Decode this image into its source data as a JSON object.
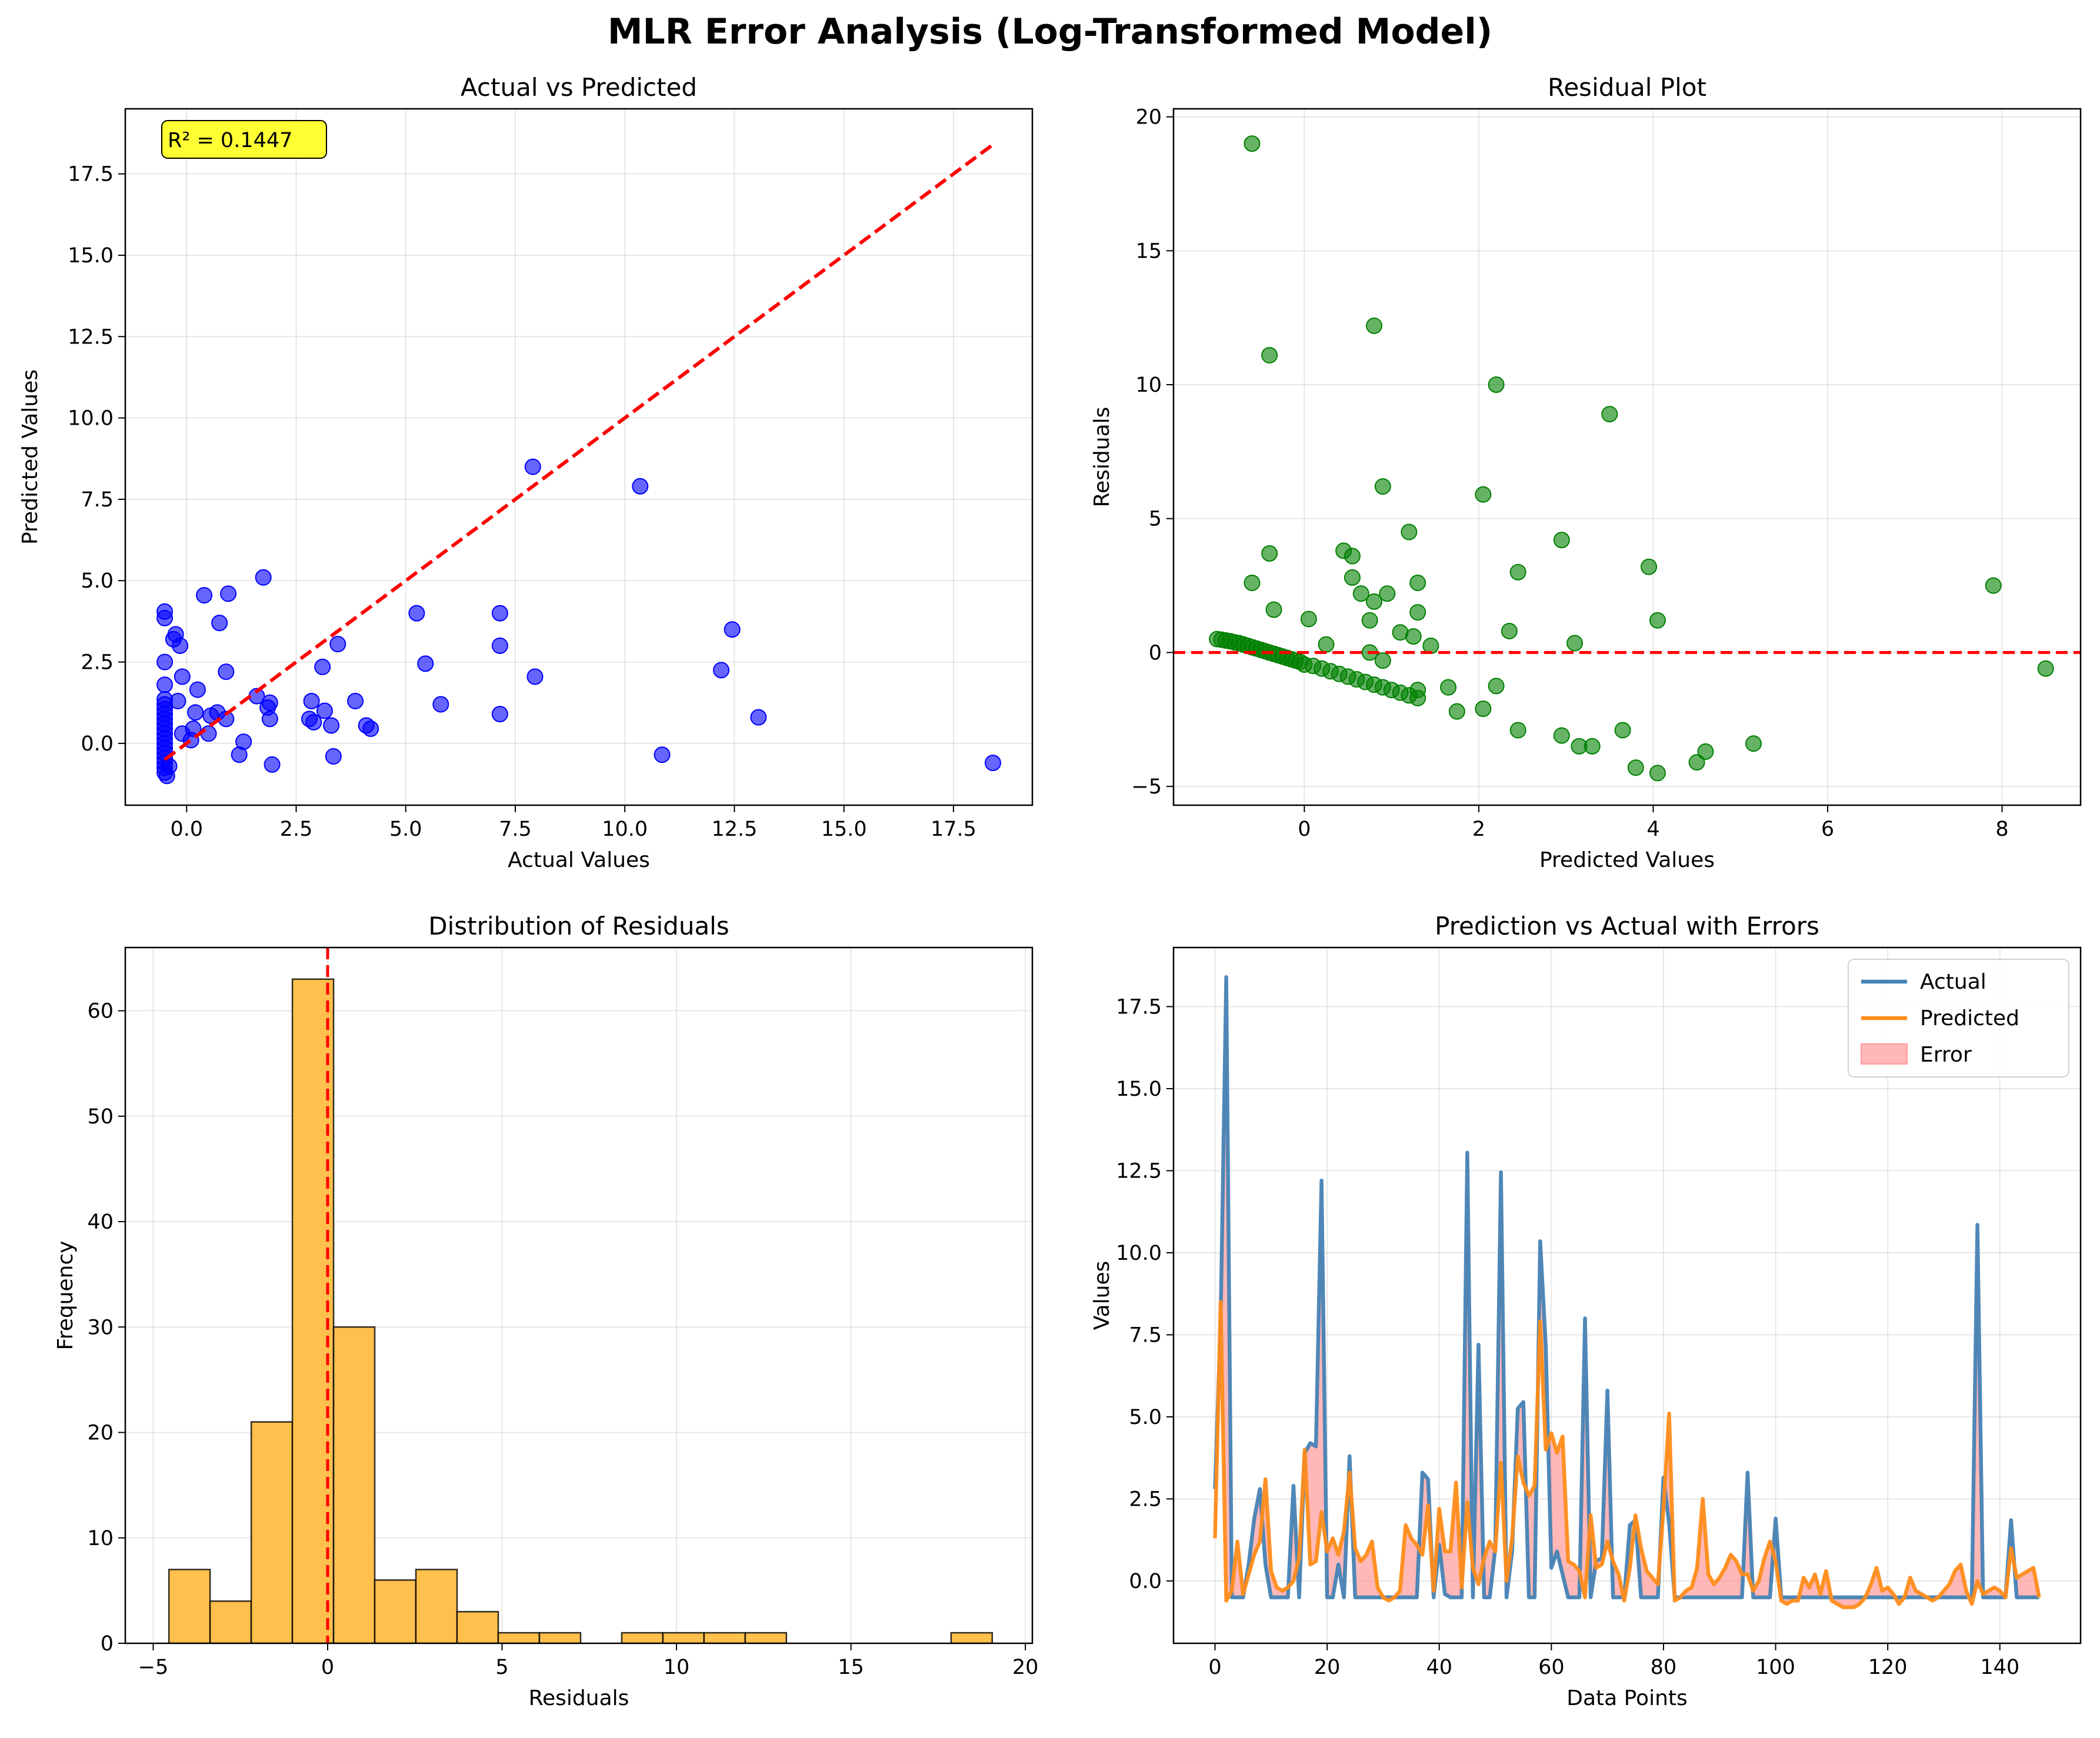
{
  "figure": {
    "suptitle": "MLR Error Analysis (Log-Transformed Model)"
  },
  "colors": {
    "scatter": "#0000ff",
    "residual": "#008000",
    "hist_fill": "#ffc04d",
    "hist_edge": "#000000",
    "ref_line": "#ff0000",
    "actual": "#4682b4",
    "predicted": "#ff8c1a",
    "error_fill": "#ff9999"
  },
  "chart_data": [
    {
      "type": "scatter",
      "title": "Actual vs Predicted",
      "xlabel": "Actual Values",
      "ylabel": "Predicted Values",
      "xlim": [
        -1.4,
        19.3
      ],
      "ylim": [
        -1.9,
        19.5
      ],
      "xticks": [
        0,
        2.5,
        5,
        7.5,
        10,
        12.5,
        15,
        17.5
      ],
      "xtick_labels": [
        "0.0",
        "2.5",
        "5.0",
        "7.5",
        "10.0",
        "12.5",
        "15.0",
        "17.5"
      ],
      "yticks": [
        0,
        2.5,
        5,
        7.5,
        10,
        12.5,
        15,
        17.5
      ],
      "ytick_labels": [
        "0.0",
        "2.5",
        "5.0",
        "7.5",
        "10.0",
        "12.5",
        "15.0",
        "17.5"
      ],
      "annotation": "R² = 0.1447",
      "reference_line": [
        [
          -0.5,
          -0.5
        ],
        [
          18.4,
          18.4
        ]
      ],
      "grid": true,
      "points": [
        [
          -0.5,
          4.05
        ],
        [
          -0.5,
          3.85
        ],
        [
          -0.3,
          3.2
        ],
        [
          -0.25,
          3.35
        ],
        [
          -0.15,
          3.0
        ],
        [
          -0.5,
          2.5
        ],
        [
          -0.1,
          2.05
        ],
        [
          -0.5,
          1.8
        ],
        [
          -0.5,
          1.35
        ],
        [
          -0.5,
          1.2
        ],
        [
          -0.5,
          1.05
        ],
        [
          -0.5,
          0.9
        ],
        [
          -0.5,
          0.75
        ],
        [
          -0.5,
          0.6
        ],
        [
          -0.5,
          0.45
        ],
        [
          -0.5,
          0.3
        ],
        [
          -0.5,
          0.15
        ],
        [
          -0.5,
          0.0
        ],
        [
          -0.5,
          -0.15
        ],
        [
          -0.5,
          -0.3
        ],
        [
          -0.5,
          -0.45
        ],
        [
          -0.5,
          -0.6
        ],
        [
          -0.5,
          -0.75
        ],
        [
          -0.5,
          -0.9
        ],
        [
          -0.45,
          -1.0
        ],
        [
          -0.4,
          -0.7
        ],
        [
          -0.2,
          1.3
        ],
        [
          -0.1,
          0.3
        ],
        [
          0.1,
          0.1
        ],
        [
          0.15,
          0.45
        ],
        [
          0.2,
          0.95
        ],
        [
          0.25,
          1.65
        ],
        [
          0.4,
          4.55
        ],
        [
          0.5,
          0.3
        ],
        [
          0.55,
          0.85
        ],
        [
          0.7,
          0.95
        ],
        [
          0.75,
          3.7
        ],
        [
          0.9,
          0.75
        ],
        [
          0.9,
          2.2
        ],
        [
          0.95,
          4.6
        ],
        [
          1.2,
          -0.35
        ],
        [
          1.3,
          0.05
        ],
        [
          1.6,
          1.45
        ],
        [
          1.75,
          5.1
        ],
        [
          1.85,
          1.1
        ],
        [
          1.9,
          1.25
        ],
        [
          1.9,
          0.75
        ],
        [
          1.95,
          -0.65
        ],
        [
          2.8,
          0.75
        ],
        [
          2.85,
          1.3
        ],
        [
          2.9,
          0.65
        ],
        [
          3.1,
          2.35
        ],
        [
          3.15,
          1.0
        ],
        [
          3.3,
          0.55
        ],
        [
          3.35,
          -0.4
        ],
        [
          3.45,
          3.05
        ],
        [
          3.85,
          1.3
        ],
        [
          4.1,
          0.55
        ],
        [
          4.2,
          0.45
        ],
        [
          5.25,
          4.0
        ],
        [
          5.45,
          2.45
        ],
        [
          5.8,
          1.2
        ],
        [
          7.15,
          4.0
        ],
        [
          7.15,
          3.0
        ],
        [
          7.15,
          0.9
        ],
        [
          7.9,
          8.5
        ],
        [
          7.95,
          2.05
        ],
        [
          10.35,
          7.9
        ],
        [
          10.85,
          -0.35
        ],
        [
          12.2,
          2.25
        ],
        [
          12.45,
          3.5
        ],
        [
          13.05,
          0.8
        ],
        [
          18.4,
          -0.6
        ]
      ]
    },
    {
      "type": "scatter",
      "title": "Residual Plot",
      "xlabel": "Predicted Values",
      "ylabel": "Residuals",
      "xlim": [
        -1.5,
        8.9
      ],
      "ylim": [
        -5.7,
        20.3
      ],
      "xticks": [
        0,
        2,
        4,
        6,
        8
      ],
      "xtick_labels": [
        "0",
        "2",
        "4",
        "6",
        "8"
      ],
      "yticks": [
        -5,
        0,
        5,
        10,
        15,
        20
      ],
      "ytick_labels": [
        "−5",
        "0",
        "5",
        "10",
        "15",
        "20"
      ],
      "reference_line_y": 0,
      "grid": true,
      "points": [
        [
          -1.0,
          0.5
        ],
        [
          -0.95,
          0.48
        ],
        [
          -0.9,
          0.45
        ],
        [
          -0.85,
          0.42
        ],
        [
          -0.8,
          0.38
        ],
        [
          -0.75,
          0.35
        ],
        [
          -0.7,
          0.3
        ],
        [
          -0.65,
          0.25
        ],
        [
          -0.6,
          0.2
        ],
        [
          -0.55,
          0.15
        ],
        [
          -0.5,
          0.1
        ],
        [
          -0.45,
          0.05
        ],
        [
          -0.4,
          0.0
        ],
        [
          -0.35,
          -0.05
        ],
        [
          -0.3,
          -0.1
        ],
        [
          -0.25,
          -0.15
        ],
        [
          -0.2,
          -0.2
        ],
        [
          -0.15,
          -0.25
        ],
        [
          -0.1,
          -0.3
        ],
        [
          -0.05,
          -0.35
        ],
        [
          0.0,
          -0.45
        ],
        [
          0.1,
          -0.5
        ],
        [
          0.2,
          -0.6
        ],
        [
          0.3,
          -0.7
        ],
        [
          0.4,
          -0.8
        ],
        [
          0.5,
          -0.9
        ],
        [
          0.6,
          -1.0
        ],
        [
          0.7,
          -1.1
        ],
        [
          0.8,
          -1.2
        ],
        [
          0.9,
          -1.3
        ],
        [
          1.0,
          -1.4
        ],
        [
          1.1,
          -1.5
        ],
        [
          1.2,
          -1.6
        ],
        [
          1.3,
          -1.7
        ],
        [
          -0.6,
          19.0
        ],
        [
          0.8,
          12.2
        ],
        [
          -0.4,
          11.1
        ],
        [
          2.2,
          10.0
        ],
        [
          3.5,
          8.9
        ],
        [
          0.9,
          6.2
        ],
        [
          2.05,
          5.9
        ],
        [
          1.2,
          4.5
        ],
        [
          2.95,
          4.2
        ],
        [
          -0.4,
          3.7
        ],
        [
          0.45,
          3.8
        ],
        [
          0.55,
          3.6
        ],
        [
          3.95,
          3.2
        ],
        [
          2.45,
          3.0
        ],
        [
          -0.6,
          2.6
        ],
        [
          1.3,
          2.6
        ],
        [
          7.9,
          2.5
        ],
        [
          0.55,
          2.8
        ],
        [
          0.65,
          2.2
        ],
        [
          0.95,
          2.2
        ],
        [
          -0.35,
          1.6
        ],
        [
          1.3,
          1.5
        ],
        [
          4.05,
          1.2
        ],
        [
          0.05,
          1.25
        ],
        [
          0.75,
          1.2
        ],
        [
          0.8,
          1.9
        ],
        [
          1.1,
          0.75
        ],
        [
          1.25,
          0.6
        ],
        [
          2.35,
          0.8
        ],
        [
          3.1,
          0.35
        ],
        [
          1.45,
          0.25
        ],
        [
          0.25,
          0.3
        ],
        [
          0.75,
          0.0
        ],
        [
          0.9,
          -0.3
        ],
        [
          1.65,
          -1.3
        ],
        [
          2.2,
          -1.25
        ],
        [
          1.3,
          -1.4
        ],
        [
          1.75,
          -2.2
        ],
        [
          2.05,
          -2.1
        ],
        [
          2.45,
          -2.9
        ],
        [
          2.95,
          -3.1
        ],
        [
          3.15,
          -3.5
        ],
        [
          3.3,
          -3.5
        ],
        [
          3.65,
          -2.9
        ],
        [
          3.8,
          -4.3
        ],
        [
          4.05,
          -4.5
        ],
        [
          4.5,
          -4.1
        ],
        [
          4.6,
          -3.7
        ],
        [
          5.15,
          -3.4
        ],
        [
          8.5,
          -0.6
        ]
      ]
    },
    {
      "type": "bar",
      "title": "Distribution of Residuals",
      "xlabel": "Residuals",
      "ylabel": "Frequency",
      "xlim": [
        -5.8,
        20.2
      ],
      "ylim": [
        0,
        66
      ],
      "xticks": [
        -5,
        0,
        5,
        10,
        15,
        20
      ],
      "xtick_labels": [
        "−5",
        "0",
        "5",
        "10",
        "15",
        "20"
      ],
      "yticks": [
        0,
        10,
        20,
        30,
        40,
        50,
        60
      ],
      "ytick_labels": [
        "0",
        "10",
        "20",
        "30",
        "40",
        "50",
        "60"
      ],
      "reference_line_x": 0,
      "grid": true,
      "bin_edges": [
        -4.55,
        -3.37,
        -2.19,
        -1.01,
        0.17,
        1.35,
        2.53,
        3.71,
        4.89,
        6.07,
        7.25,
        8.43,
        9.61,
        10.79,
        11.97,
        13.15,
        14.33,
        15.51,
        16.69,
        17.87,
        19.05
      ],
      "counts": [
        7,
        4,
        21,
        63,
        30,
        6,
        7,
        3,
        1,
        1,
        0,
        1,
        1,
        1,
        1,
        0,
        0,
        0,
        0,
        1
      ]
    },
    {
      "type": "line",
      "title": "Prediction vs Actual with Errors",
      "xlabel": "Data Points",
      "ylabel": "Values",
      "xlim": [
        -7.4,
        154.4
      ],
      "ylim": [
        -1.9,
        19.3
      ],
      "xticks": [
        0,
        20,
        40,
        60,
        80,
        100,
        120,
        140
      ],
      "xtick_labels": [
        "0",
        "20",
        "40",
        "60",
        "80",
        "100",
        "120",
        "140"
      ],
      "yticks": [
        0,
        2.5,
        5,
        7.5,
        10,
        12.5,
        15,
        17.5
      ],
      "ytick_labels": [
        "0.0",
        "2.5",
        "5.0",
        "7.5",
        "10.0",
        "12.5",
        "15.0",
        "17.5"
      ],
      "legend": {
        "placement": "upper right",
        "entries": [
          "Actual",
          "Predicted",
          "Error"
        ]
      },
      "grid": true,
      "series": [
        {
          "name": "Actual",
          "values": [
            2.8,
            7.9,
            18.4,
            -0.5,
            -0.5,
            -0.5,
            0.5,
            1.9,
            2.8,
            0.5,
            -0.5,
            -0.5,
            -0.5,
            -0.5,
            2.9,
            -0.5,
            3.9,
            4.2,
            4.1,
            12.2,
            -0.5,
            -0.5,
            0.5,
            -0.5,
            3.8,
            -0.5,
            -0.5,
            -0.5,
            -0.5,
            -0.5,
            -0.5,
            -0.5,
            -0.5,
            -0.5,
            -0.5,
            -0.5,
            -0.5,
            3.3,
            3.1,
            -0.5,
            1.1,
            -0.4,
            -0.5,
            -0.5,
            -0.5,
            13.05,
            -0.5,
            7.2,
            -0.5,
            -0.5,
            1.0,
            12.45,
            -0.5,
            0.9,
            5.25,
            5.45,
            -0.5,
            -0.5,
            10.35,
            7.15,
            0.4,
            0.9,
            0.2,
            -0.5,
            -0.5,
            -0.5,
            8.0,
            -0.5,
            0.6,
            0.7,
            5.8,
            -0.5,
            -0.5,
            -0.5,
            1.7,
            1.85,
            -0.5,
            -0.5,
            -0.5,
            -0.5,
            3.15,
            1.75,
            -0.5,
            -0.5,
            -0.5,
            -0.5,
            -0.5,
            -0.5,
            -0.5,
            -0.5,
            -0.5,
            -0.5,
            -0.5,
            -0.5,
            -0.5,
            3.3,
            -0.5,
            -0.5,
            -0.5,
            -0.5,
            1.9,
            -0.5,
            -0.5,
            -0.5,
            -0.5,
            -0.5,
            -0.5,
            -0.5,
            -0.5,
            -0.5,
            -0.5,
            -0.5,
            -0.5,
            -0.5,
            -0.5,
            -0.5,
            -0.5,
            -0.5,
            -0.5,
            -0.5,
            -0.5,
            -0.5,
            -0.5,
            -0.5,
            -0.5,
            -0.5,
            -0.5,
            -0.5,
            -0.5,
            -0.5,
            -0.5,
            -0.5,
            -0.5,
            -0.5,
            -0.5,
            -0.5,
            10.85,
            -0.5,
            -0.5,
            -0.5,
            -0.5,
            -0.5,
            1.85,
            -0.5,
            -0.5,
            -0.5,
            -0.5,
            -0.5
          ]
        },
        {
          "name": "Predicted",
          "values": [
            1.3,
            8.5,
            -0.6,
            -0.3,
            1.2,
            -0.4,
            0.2,
            0.8,
            1.2,
            3.1,
            0.3,
            -0.2,
            -0.3,
            -0.2,
            0.0,
            0.7,
            4.0,
            0.5,
            0.6,
            2.1,
            0.9,
            1.3,
            0.8,
            1.5,
            3.3,
            1.0,
            0.6,
            0.8,
            1.2,
            -0.2,
            -0.5,
            -0.6,
            -0.5,
            -0.3,
            1.7,
            1.3,
            1.1,
            0.8,
            2.3,
            -0.3,
            2.2,
            0.9,
            0.9,
            3.0,
            -0.2,
            2.4,
            0.4,
            -0.1,
            0.7,
            1.2,
            0.9,
            3.6,
            0.0,
            1.3,
            3.8,
            3.0,
            2.6,
            2.9,
            7.9,
            4.0,
            4.5,
            3.9,
            4.4,
            0.6,
            0.5,
            0.3,
            -0.5,
            2.0,
            0.4,
            0.5,
            1.2,
            0.6,
            0.2,
            -0.6,
            0.4,
            2.0,
            1.0,
            0.3,
            0.1,
            -0.1,
            2.2,
            5.1,
            -0.6,
            -0.5,
            -0.3,
            -0.2,
            0.4,
            2.5,
            0.2,
            -0.1,
            0.1,
            0.4,
            0.8,
            0.6,
            0.2,
            0.2,
            -0.3,
            0.0,
            0.7,
            1.2,
            0.6,
            -0.6,
            -0.7,
            -0.6,
            -0.6,
            0.1,
            -0.2,
            0.2,
            -0.4,
            0.3,
            -0.6,
            -0.7,
            -0.8,
            -0.8,
            -0.8,
            -0.7,
            -0.5,
            -0.1,
            0.4,
            -0.3,
            -0.2,
            -0.4,
            -0.7,
            -0.5,
            0.1,
            -0.3,
            -0.4,
            -0.5,
            -0.6,
            -0.5,
            -0.3,
            -0.1,
            0.3,
            0.5,
            -0.3,
            -0.7,
            0.0,
            -0.4,
            -0.3,
            -0.2,
            -0.3,
            -0.5,
            1.0,
            0.1,
            0.2,
            0.3,
            0.4,
            -0.5
          ]
        }
      ]
    }
  ]
}
